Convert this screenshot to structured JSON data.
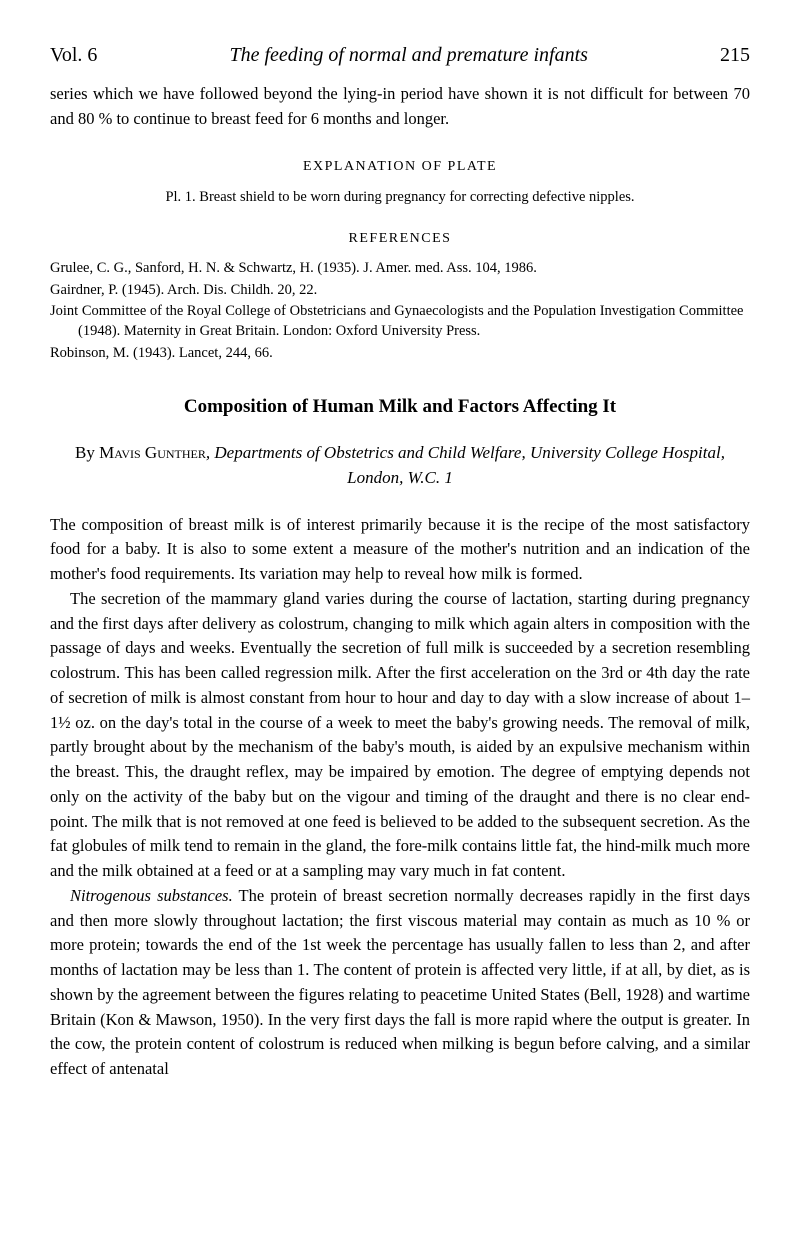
{
  "header": {
    "volume": "Vol. 6",
    "running_title": "The feeding of normal and premature infants",
    "page_number": "215"
  },
  "continuation": "series which we have followed beyond the lying-in period have shown it is not difficult for between 70 and 80 % to continue to breast feed for 6 months and longer.",
  "plate_section": {
    "heading": "EXPLANATION OF PLATE",
    "caption": "Pl. 1.  Breast shield to be worn during pregnancy for correcting defective nipples."
  },
  "references": {
    "heading": "REFERENCES",
    "entries": [
      "Grulee, C. G., Sanford, H. N. & Schwartz, H. (1935). J. Amer. med. Ass. 104, 1986.",
      "Gairdner, P. (1945). Arch. Dis. Childh. 20, 22.",
      "Joint Committee of the Royal College of Obstetricians and Gynaecologists and the Population Investigation Committee (1948). Maternity in Great Britain. London: Oxford University Press.",
      "Robinson, M. (1943). Lancet, 244, 66."
    ]
  },
  "article": {
    "title": "Composition of Human Milk and Factors Affecting It",
    "by_prefix": "By ",
    "author": "Mavis Gunther",
    "affiliation": ", Departments of Obstetrics and Child Welfare, University College Hospital, London, W.C. 1",
    "paragraphs": [
      "The composition of breast milk is of interest primarily because it is the recipe of the most satisfactory food for a baby. It is also to some extent a measure of the mother's nutrition and an indication of the mother's food requirements. Its variation may help to reveal how milk is formed.",
      "The secretion of the mammary gland varies during the course of lactation, starting during pregnancy and the first days after delivery as colostrum, changing to milk which again alters in composition with the passage of days and weeks. Eventually the secretion of full milk is succeeded by a secretion resembling colostrum. This has been called regression milk. After the first acceleration on the 3rd or 4th day the rate of secretion of milk is almost constant from hour to hour and day to day with a slow increase of about 1–1½ oz. on the day's total in the course of a week to meet the baby's growing needs. The removal of milk, partly brought about by the mechanism of the baby's mouth, is aided by an expulsive mechanism within the breast. This, the draught reflex, may be impaired by emotion. The degree of emptying depends not only on the activity of the baby but on the vigour and timing of the draught and there is no clear end-point. The milk that is not removed at one feed is believed to be added to the subsequent secretion. As the fat globules of milk tend to remain in the gland, the fore-milk contains little fat, the hind-milk much more and the milk obtained at a feed or at a sampling may vary much in fat content.",
      "Nitrogenous substances. The protein of breast secretion normally decreases rapidly in the first days and then more slowly throughout lactation; the first viscous material may contain as much as 10 % or more protein; towards the end of the 1st week the percentage has usually fallen to less than 2, and after months of lactation may be less than 1. The content of protein is affected very little, if at all, by diet, as is shown by the agreement between the figures relating to peacetime United States (Bell, 1928) and wartime Britain (Kon & Mawson, 1950). In the very first days the fall is more rapid where the output is greater. In the cow, the protein content of colostrum is reduced when milking is begun before calving, and a similar effect of antenatal"
    ],
    "para3_lead": "Nitrogenous substances."
  }
}
